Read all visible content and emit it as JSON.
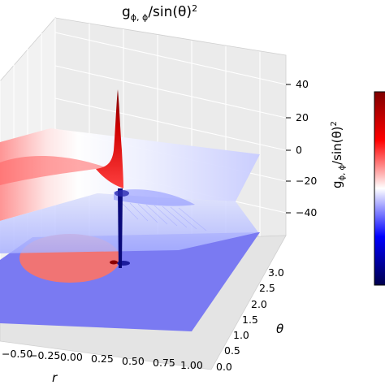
{
  "chart_data": {
    "type": "surface3d",
    "title": "g_{φ,φ}/sin(θ)^2",
    "xlabel": "r",
    "ylabel": "θ",
    "zlabel": "g_{φ,φ}/sin(θ)^2",
    "x_ticks": [
      "−0.50",
      "−0.25",
      "0.00",
      "0.25",
      "0.50",
      "0.75",
      "1.00"
    ],
    "y_ticks": [
      "0.0",
      "0.5",
      "1.0",
      "1.5",
      "2.0",
      "2.5",
      "3.0"
    ],
    "z_ticks": [
      "40",
      "20",
      "0",
      "−20",
      "−40"
    ],
    "xlim": [
      -1.0,
      1.0
    ],
    "ylim": [
      0.0,
      3.14
    ],
    "zlim": [
      -55,
      55
    ],
    "colormap": "seismic",
    "colors": {
      "positive": "#e8101a",
      "negative": "#1a1aff",
      "neutral": "#ffffff",
      "floor_positive": "#f07070",
      "floor_negative": "#7070f0"
    },
    "grid": true,
    "colorbar": "right",
    "features": [
      {
        "name": "spike",
        "sign": "positive",
        "peak_value": 55
      },
      {
        "name": "spike",
        "sign": "negative",
        "peak_value": -55
      }
    ],
    "contour_projection": "floor"
  }
}
